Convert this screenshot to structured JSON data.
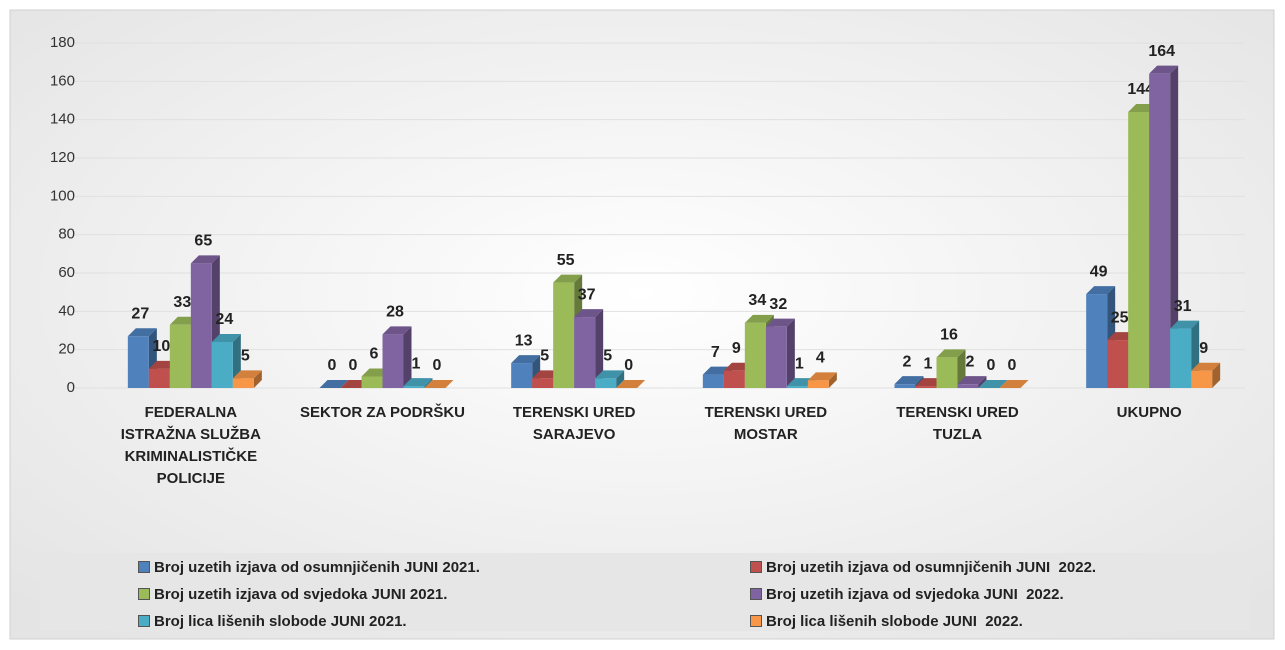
{
  "chart_data": {
    "type": "bar",
    "categories": [
      "FEDERALNA ISTRAŽNA SLUŽBA KRIMINALISTIČKE POLICIJE",
      "SEKTOR ZA PODRŠKU",
      "TERENSKI URED SARAJEVO",
      "TERENSKI URED MOSTAR",
      "TERENSKI URED TUZLA",
      "UKUPNO"
    ],
    "series": [
      {
        "name": "Broj uzetih izjava od osumnjičenih JUNI 2021.",
        "color": "#4f81bd",
        "values": [
          27,
          0,
          13,
          7,
          2,
          49
        ]
      },
      {
        "name": "Broj uzetih izjava od osumnjičenih JUNI  2022.",
        "color": "#c0504d",
        "values": [
          10,
          0,
          5,
          9,
          1,
          25
        ]
      },
      {
        "name": "Broj uzetih izjava od svjedoka JUNI 2021.",
        "color": "#9bbb59",
        "values": [
          33,
          6,
          55,
          34,
          16,
          144
        ]
      },
      {
        "name": "Broj uzetih izjava od svjedoka JUNI  2022.",
        "color": "#8064a2",
        "values": [
          65,
          28,
          37,
          32,
          2,
          164
        ]
      },
      {
        "name": "Broj lica lišenih slobode JUNI 2021.",
        "color": "#4bacc6",
        "values": [
          24,
          1,
          5,
          1,
          0,
          31
        ]
      },
      {
        "name": "Broj lica lišenih slobode JUNI  2022.",
        "color": "#f79646",
        "values": [
          5,
          0,
          0,
          4,
          0,
          9
        ]
      }
    ],
    "ylim": [
      0,
      180
    ],
    "yticks": [
      0,
      20,
      40,
      60,
      80,
      100,
      120,
      140,
      160,
      180
    ],
    "grid": true
  }
}
